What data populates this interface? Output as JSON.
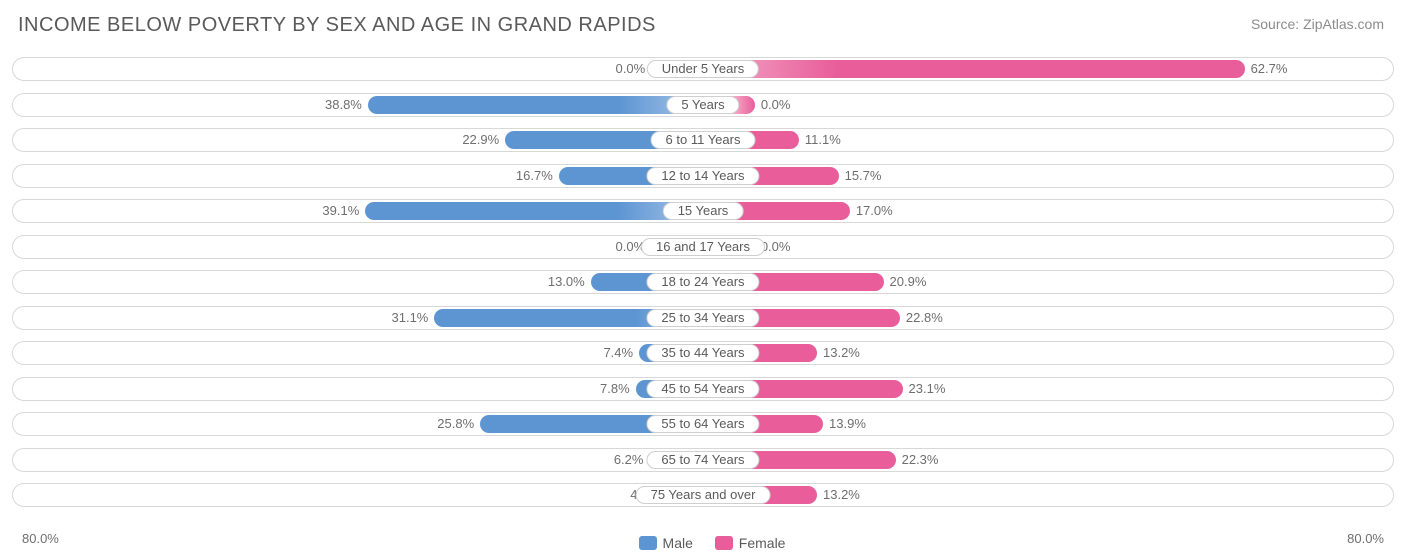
{
  "title": "INCOME BELOW POVERTY BY SEX AND AGE IN GRAND RAPIDS",
  "source": "Source: ZipAtlas.com",
  "axis_max_pct": 80.0,
  "axis_left_label": "80.0%",
  "axis_right_label": "80.0%",
  "colors": {
    "male_fill": "#5d95d3",
    "male_light": "#a9c6e8",
    "female_fill": "#e85d9a",
    "female_light": "#f4a8c7",
    "track_border": "#d8d8d8",
    "label_border": "#cfcfcf",
    "text": "#5a5a5a",
    "value_text": "#6e6e6e",
    "bg": "#ffffff"
  },
  "legend": {
    "male": "Male",
    "female": "Female"
  },
  "min_bar_pct": 6.0,
  "gradient_zero_start": 0.6,
  "rows": [
    {
      "label": "Under 5 Years",
      "male": 0.0,
      "female": 62.7
    },
    {
      "label": "5 Years",
      "male": 38.8,
      "female": 0.0
    },
    {
      "label": "6 to 11 Years",
      "male": 22.9,
      "female": 11.1
    },
    {
      "label": "12 to 14 Years",
      "male": 16.7,
      "female": 15.7
    },
    {
      "label": "15 Years",
      "male": 39.1,
      "female": 17.0
    },
    {
      "label": "16 and 17 Years",
      "male": 0.0,
      "female": 0.0
    },
    {
      "label": "18 to 24 Years",
      "male": 13.0,
      "female": 20.9
    },
    {
      "label": "25 to 34 Years",
      "male": 31.1,
      "female": 22.8
    },
    {
      "label": "35 to 44 Years",
      "male": 7.4,
      "female": 13.2
    },
    {
      "label": "45 to 54 Years",
      "male": 7.8,
      "female": 23.1
    },
    {
      "label": "55 to 64 Years",
      "male": 25.8,
      "female": 13.9
    },
    {
      "label": "65 to 74 Years",
      "male": 6.2,
      "female": 22.3
    },
    {
      "label": "75 Years and over",
      "male": 4.3,
      "female": 13.2
    }
  ],
  "typography": {
    "title_fontsize": 20,
    "label_fontsize": 13,
    "legend_fontsize": 14
  }
}
